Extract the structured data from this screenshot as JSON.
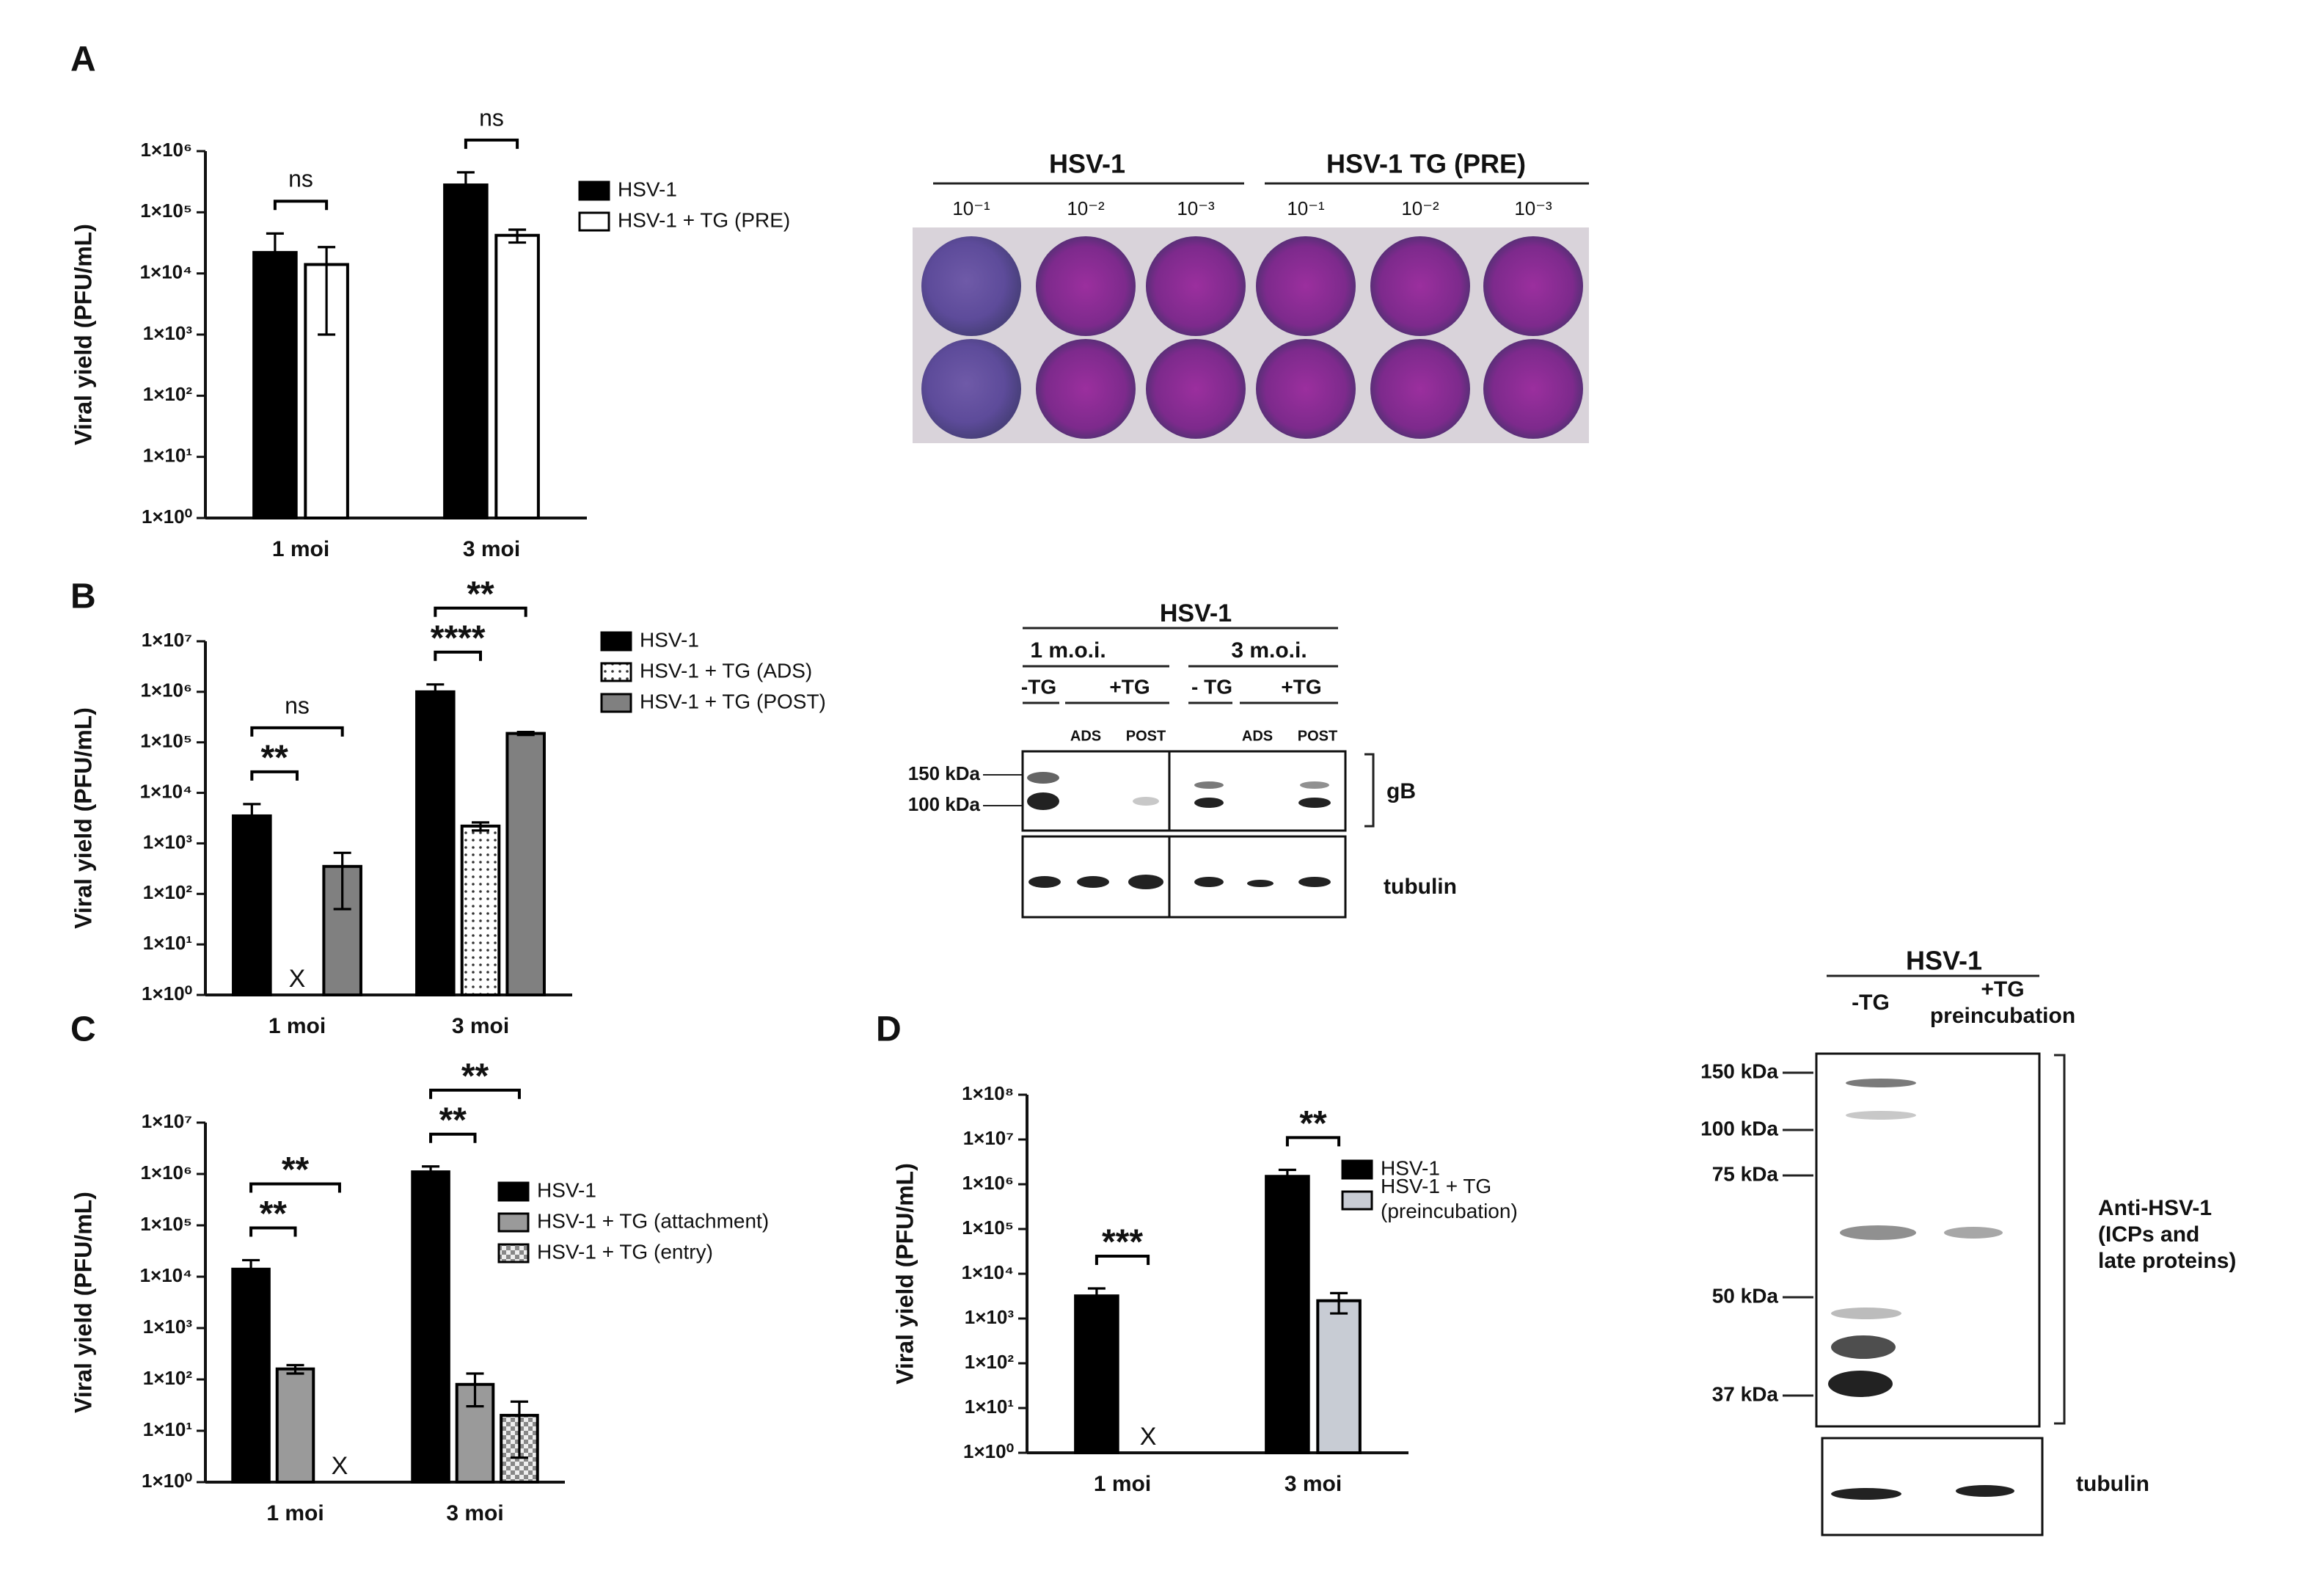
{
  "chart_data": [
    {
      "type": "bar",
      "panel": "A",
      "y_label": "Viral yield (PFU/mL)",
      "log_scale": true,
      "categories": [
        "1 moi",
        "3 moi"
      ],
      "series": [
        {
          "name": "HSV-1",
          "color": "#000000",
          "values": [
            22000,
            280000
          ],
          "errors": [
            23000,
            170000
          ]
        },
        {
          "name": "HSV-1 + TG (PRE)",
          "color": "#ffffff",
          "values": [
            14000,
            42000
          ],
          "errors": [
            13000,
            10000
          ]
        }
      ],
      "ylim": [
        1,
        1000000
      ],
      "yticks": [
        {
          "value": 1,
          "label": "1×10⁰"
        },
        {
          "value": 10,
          "label": "1×10¹"
        },
        {
          "value": 100,
          "label": "1×10²"
        },
        {
          "value": 1000,
          "label": "1×10³"
        },
        {
          "value": 10000,
          "label": "1×10⁴"
        },
        {
          "value": 100000,
          "label": "1×10⁵"
        },
        {
          "value": 1000000,
          "label": "1×10⁶"
        }
      ],
      "annotations": [
        {
          "text": "ns",
          "category": 0,
          "bars": [
            0,
            1
          ]
        },
        {
          "text": "ns",
          "category": 1,
          "bars": [
            0,
            1
          ]
        }
      ]
    },
    {
      "type": "bar",
      "panel": "B",
      "y_label": "Viral yield (PFU/mL)",
      "log_scale": true,
      "categories": [
        "1 moi",
        "3 moi"
      ],
      "series": [
        {
          "name": "HSV-1",
          "color": "#000000",
          "values": [
            3500,
            1000000
          ],
          "errors": [
            2500,
            400000
          ]
        },
        {
          "name": "HSV-1 + TG (ADS)",
          "color": "#ffffff",
          "pattern": "dots",
          "values": [
            null,
            2200
          ],
          "errors": [
            null,
            400
          ]
        },
        {
          "name": "HSV-1 + TG (POST)",
          "color": "#808080",
          "values": [
            350,
            150000
          ],
          "errors": [
            300,
            10000
          ]
        }
      ],
      "ylim": [
        1,
        10000000
      ],
      "yticks": [
        {
          "value": 1,
          "label": "1×10⁰"
        },
        {
          "value": 10,
          "label": "1×10¹"
        },
        {
          "value": 100,
          "label": "1×10²"
        },
        {
          "value": 1000,
          "label": "1×10³"
        },
        {
          "value": 10000,
          "label": "1×10⁴"
        },
        {
          "value": 100000,
          "label": "1×10⁵"
        },
        {
          "value": 1000000,
          "label": "1×10⁶"
        },
        {
          "value": 10000000,
          "label": "1×10⁷"
        }
      ],
      "annotations": [
        {
          "text": "**",
          "category": 0,
          "bars": [
            0,
            1
          ]
        },
        {
          "text": "ns",
          "category": 0,
          "bars": [
            0,
            2
          ]
        },
        {
          "text": "****",
          "category": 1,
          "bars": [
            0,
            1
          ]
        },
        {
          "text": "**",
          "category": 1,
          "bars": [
            0,
            2
          ]
        },
        {
          "text": "X",
          "category": 0,
          "bars": [
            1
          ]
        }
      ]
    },
    {
      "type": "bar",
      "panel": "C",
      "y_label": "Viral yield (PFU/mL)",
      "log_scale": true,
      "categories": [
        "1 moi",
        "3 moi"
      ],
      "series": [
        {
          "name": "HSV-1",
          "color": "#000000",
          "values": [
            14000,
            1100000
          ],
          "errors": [
            7000,
            300000
          ]
        },
        {
          "name": "HSV-1 + TG (attachment)",
          "color": "#9a9a9a",
          "values": [
            160,
            80
          ],
          "errors": [
            30,
            50
          ]
        },
        {
          "name": "HSV-1 + TG (entry)",
          "color": "#d8d8d8",
          "pattern": "checker",
          "values": [
            null,
            20
          ],
          "errors": [
            null,
            17
          ]
        }
      ],
      "ylim": [
        1,
        10000000
      ],
      "yticks": [
        {
          "value": 1,
          "label": "1×10⁰"
        },
        {
          "value": 10,
          "label": "1×10¹"
        },
        {
          "value": 100,
          "label": "1×10²"
        },
        {
          "value": 1000,
          "label": "1×10³"
        },
        {
          "value": 10000,
          "label": "1×10⁴"
        },
        {
          "value": 100000,
          "label": "1×10⁵"
        },
        {
          "value": 1000000,
          "label": "1×10⁶"
        },
        {
          "value": 10000000,
          "label": "1×10⁷"
        }
      ],
      "annotations": [
        {
          "text": "**",
          "category": 0,
          "bars": [
            0,
            1
          ]
        },
        {
          "text": "**",
          "category": 0,
          "bars": [
            0,
            2
          ]
        },
        {
          "text": "**",
          "category": 1,
          "bars": [
            0,
            1
          ]
        },
        {
          "text": "**",
          "category": 1,
          "bars": [
            0,
            2
          ]
        },
        {
          "text": "X",
          "category": 0,
          "bars": [
            2
          ]
        }
      ]
    },
    {
      "type": "bar",
      "panel": "D",
      "y_label": "Viral yield (PFU/mL)",
      "log_scale": true,
      "categories": [
        "1 moi",
        "3 moi"
      ],
      "series": [
        {
          "name": "HSV-1",
          "color": "#000000",
          "values": [
            3200,
            1500000
          ],
          "errors": [
            1500,
            600000
          ]
        },
        {
          "name": "HSV-1 + TG\n(preincubation)",
          "color": "#c8ccd4",
          "values": [
            null,
            2500
          ],
          "errors": [
            null,
            1200
          ]
        }
      ],
      "ylim": [
        1,
        100000000
      ],
      "yticks": [
        {
          "value": 1,
          "label": "1×10⁰"
        },
        {
          "value": 10,
          "label": "1×10¹"
        },
        {
          "value": 100,
          "label": "1×10²"
        },
        {
          "value": 1000,
          "label": "1×10³"
        },
        {
          "value": 10000,
          "label": "1×10⁴"
        },
        {
          "value": 100000,
          "label": "1×10⁵"
        },
        {
          "value": 1000000,
          "label": "1×10⁶"
        },
        {
          "value": 10000000,
          "label": "1×10⁷"
        },
        {
          "value": 100000000,
          "label": "1×10⁸"
        }
      ],
      "annotations": [
        {
          "text": "***",
          "category": 0,
          "bars": [
            0,
            1
          ]
        },
        {
          "text": "**",
          "category": 1,
          "bars": [
            0,
            1
          ]
        },
        {
          "text": "X",
          "category": 0,
          "bars": [
            1
          ]
        }
      ]
    }
  ],
  "plate": {
    "groups": [
      "HSV-1",
      "HSV-1 TG (PRE)"
    ],
    "dilutions": [
      "10⁻¹",
      "10⁻²",
      "10⁻³",
      "10⁻¹",
      "10⁻²",
      "10⁻³"
    ]
  },
  "blot_b": {
    "title": "HSV-1",
    "moi": [
      "1 m.o.i.",
      "3 m.o.i."
    ],
    "treatments": [
      "-TG",
      "+TG",
      "- TG",
      "+TG"
    ],
    "lanes": [
      "ADS",
      "POST",
      "ADS",
      "POST"
    ],
    "markers": [
      "150 kDa",
      "100 kDa"
    ],
    "target": "gB",
    "loading": "tubulin"
  },
  "blot_d": {
    "title": "HSV-1",
    "lanes": [
      "-TG",
      "+TG\npreincubation"
    ],
    "markers": [
      "150 kDa",
      "100 kDa",
      "75 kDa",
      "50 kDa",
      "37 kDa"
    ],
    "target": "Anti-HSV-1\n(ICPs and\nlate proteins)",
    "loading": "tubulin"
  }
}
